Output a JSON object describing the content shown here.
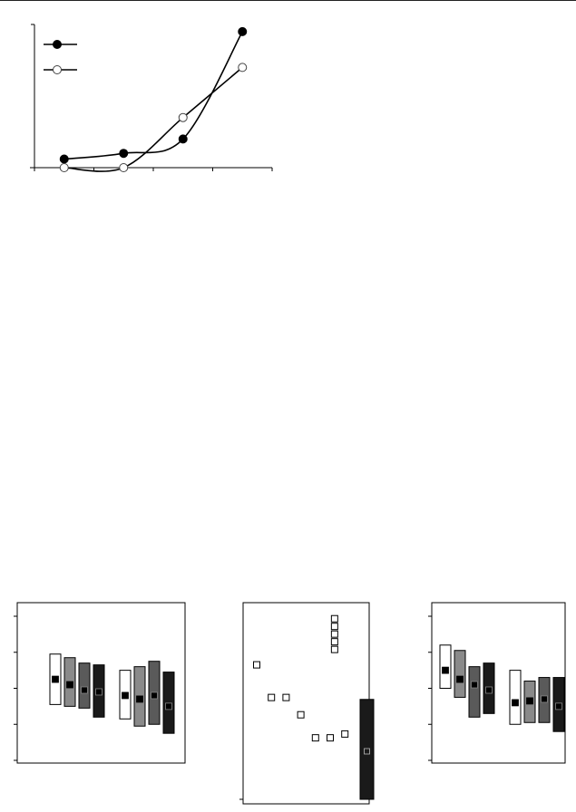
{
  "colors": {
    "ink": "#000000",
    "white": "#ffffff",
    "gray_mid": "#8a8a8a",
    "gray_dark": "#5a5a5a",
    "black": "#1a1a1a",
    "page": "#ffffff"
  },
  "chart_data": [
    {
      "type": "line",
      "title": "",
      "xlabel": "",
      "ylabel": "",
      "x": [
        1,
        2,
        3,
        4
      ],
      "xlim": [
        0.5,
        4.5
      ],
      "xticks": [
        0.5,
        1.5,
        2.5,
        3.5,
        4.5
      ],
      "ylim": [
        0,
        100
      ],
      "legend": "top-left",
      "series": [
        {
          "marker": "filled-circle",
          "values": [
            6,
            10,
            20,
            95
          ]
        },
        {
          "marker": "open-circle",
          "values": [
            0,
            0,
            35,
            70
          ]
        }
      ]
    },
    {
      "type": "bar",
      "subtype": "range-bars-with-mean",
      "title": "",
      "xlabel": "",
      "ylabel": "",
      "ylim": [
        0,
        4
      ],
      "yticks": [
        0,
        1,
        2,
        3,
        4
      ],
      "fills": [
        "white",
        "gray_mid",
        "gray_dark",
        "black"
      ],
      "groups": [
        {
          "bars": [
            {
              "low": 1.55,
              "high": 2.95,
              "mean": 2.25
            },
            {
              "low": 1.5,
              "high": 2.85,
              "mean": 2.1
            },
            {
              "low": 1.45,
              "high": 2.7,
              "mean": 1.95
            },
            {
              "low": 1.2,
              "high": 2.65,
              "mean": 1.9
            }
          ]
        },
        {
          "bars": [
            {
              "low": 1.15,
              "high": 2.5,
              "mean": 1.8
            },
            {
              "low": 0.95,
              "high": 2.6,
              "mean": 1.7
            },
            {
              "low": 1.0,
              "high": 2.75,
              "mean": 1.8
            },
            {
              "low": 0.75,
              "high": 2.45,
              "mean": 1.5
            }
          ]
        }
      ]
    },
    {
      "type": "scatter",
      "title": "",
      "xlabel": "",
      "ylabel": "",
      "ylim": [
        0,
        100
      ],
      "yticks": [
        0
      ],
      "marker": "open-square",
      "points": [
        [
          1,
          70
        ],
        [
          2,
          53
        ],
        [
          3,
          53
        ],
        [
          4,
          44
        ],
        [
          5,
          32
        ],
        [
          6,
          32
        ],
        [
          7,
          34
        ],
        [
          6.3,
          94
        ],
        [
          6.3,
          90
        ],
        [
          6.3,
          86
        ],
        [
          6.3,
          82
        ],
        [
          6.3,
          78
        ]
      ],
      "range_bar": {
        "low": 0,
        "high": 52,
        "point": 25,
        "fill": "black"
      }
    },
    {
      "type": "bar",
      "subtype": "range-bars-with-mean",
      "title": "",
      "xlabel": "",
      "ylabel": "",
      "ylim": [
        0,
        4
      ],
      "yticks": [
        0,
        1,
        2,
        3,
        4
      ],
      "fills": [
        "white",
        "gray_mid",
        "gray_dark",
        "black"
      ],
      "groups": [
        {
          "bars": [
            {
              "low": 2.0,
              "high": 3.2,
              "mean": 2.5
            },
            {
              "low": 1.75,
              "high": 3.05,
              "mean": 2.25
            },
            {
              "low": 1.2,
              "high": 2.6,
              "mean": 2.1
            },
            {
              "low": 1.3,
              "high": 2.7,
              "mean": 1.95
            }
          ]
        },
        {
          "bars": [
            {
              "low": 1.0,
              "high": 2.5,
              "mean": 1.6
            },
            {
              "low": 1.05,
              "high": 2.2,
              "mean": 1.65
            },
            {
              "low": 1.05,
              "high": 2.3,
              "mean": 1.7
            },
            {
              "low": 0.8,
              "high": 2.3,
              "mean": 1.5
            }
          ]
        }
      ]
    }
  ]
}
